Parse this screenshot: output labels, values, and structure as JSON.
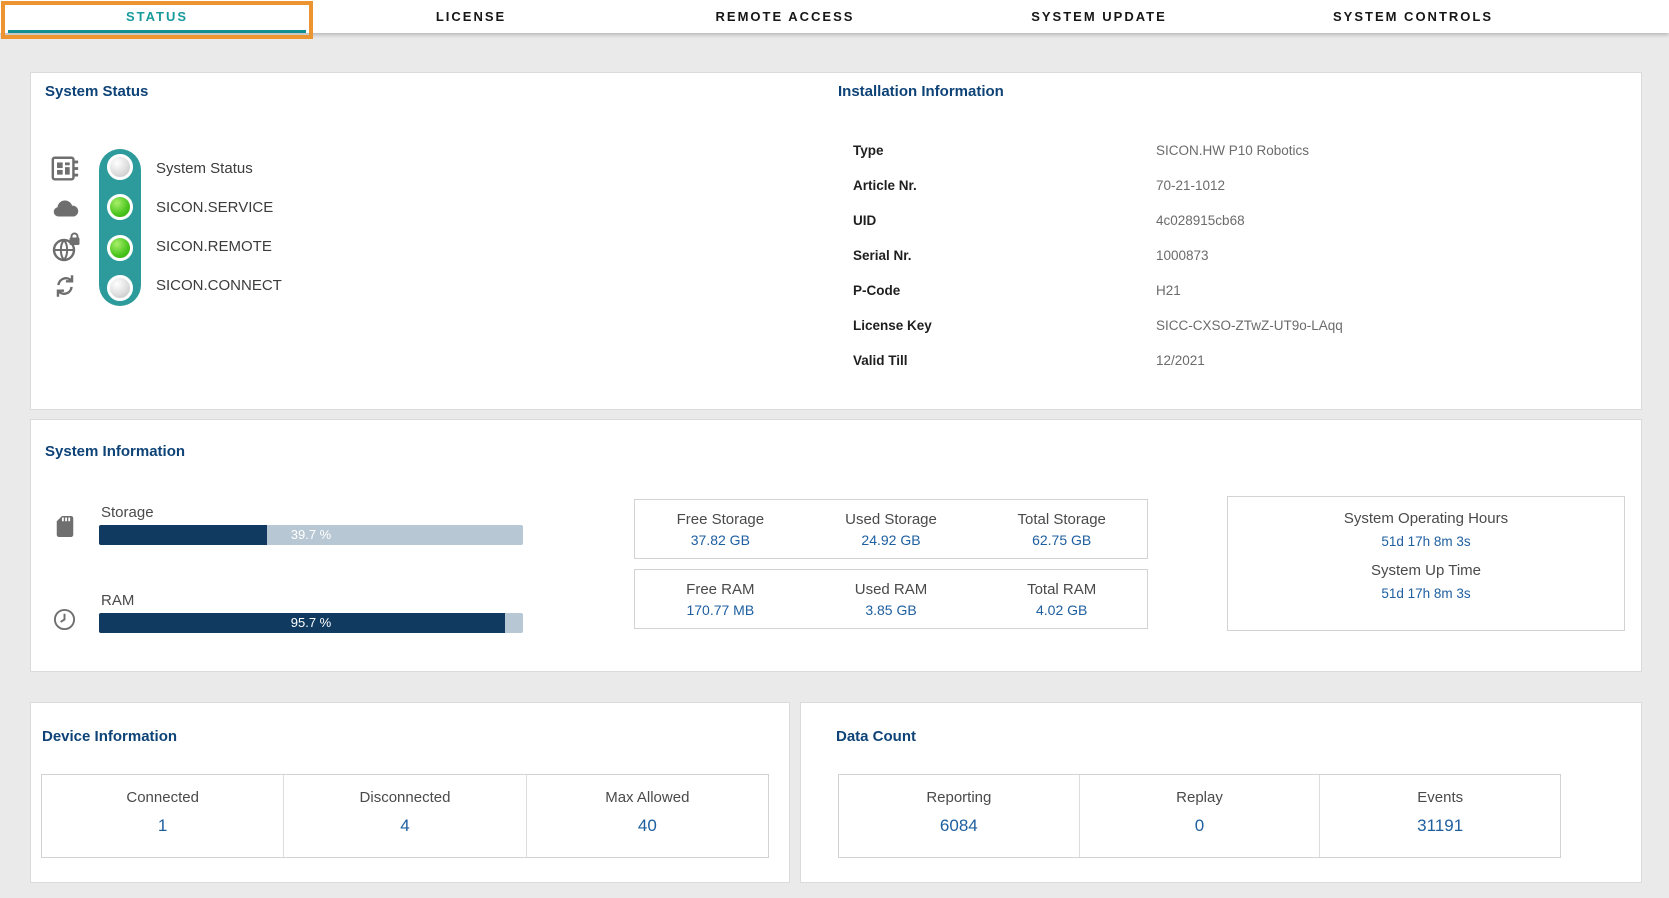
{
  "tabs": [
    {
      "label": "STATUS",
      "active": true,
      "highlighted": true
    },
    {
      "label": "LICENSE",
      "active": false
    },
    {
      "label": "REMOTE ACCESS",
      "active": false
    },
    {
      "label": "SYSTEM UPDATE",
      "active": false
    },
    {
      "label": "SYSTEM CONTROLS",
      "active": false
    }
  ],
  "system_status": {
    "title": "System Status",
    "indicators": [
      {
        "label": "System Status",
        "icon": "module-icon",
        "state": "off"
      },
      {
        "label": "SICON.SERVICE",
        "icon": "cloud-icon",
        "state": "on"
      },
      {
        "label": "SICON.REMOTE",
        "icon": "globe-lock-icon",
        "state": "on"
      },
      {
        "label": "SICON.CONNECT",
        "icon": "sync-icon",
        "state": "off"
      }
    ]
  },
  "installation_information": {
    "title": "Installation Information",
    "rows": [
      {
        "label": "Type",
        "value": "SICON.HW P10 Robotics"
      },
      {
        "label": "Article Nr.",
        "value": "70-21-1012"
      },
      {
        "label": "UID",
        "value": "4c028915cb68"
      },
      {
        "label": "Serial Nr.",
        "value": "1000873"
      },
      {
        "label": "P-Code",
        "value": "H21"
      },
      {
        "label": "License Key",
        "value": "SICC-CXSO-ZTwZ-UT9o-LAqq"
      },
      {
        "label": "Valid Till",
        "value": "12/2021"
      }
    ]
  },
  "system_information": {
    "title": "System Information",
    "storage_gauge": {
      "label": "Storage",
      "icon": "sd-card-icon",
      "percent": 39.7,
      "percent_label": "39.7 %"
    },
    "ram_gauge": {
      "label": "RAM",
      "icon": "clock-icon",
      "percent": 95.7,
      "percent_label": "95.7 %"
    },
    "storage_stats": [
      {
        "label": "Free Storage",
        "value": "37.82 GB"
      },
      {
        "label": "Used Storage",
        "value": "24.92 GB"
      },
      {
        "label": "Total Storage",
        "value": "62.75 GB"
      }
    ],
    "ram_stats": [
      {
        "label": "Free RAM",
        "value": "170.77 MB"
      },
      {
        "label": "Used RAM",
        "value": "3.85 GB"
      },
      {
        "label": "Total RAM",
        "value": "4.02 GB"
      }
    ],
    "time_stats": [
      {
        "label": "System Operating Hours",
        "value": "51d 17h 8m 3s"
      },
      {
        "label": "System Up Time",
        "value": "51d 17h 8m 3s"
      }
    ]
  },
  "device_information": {
    "title": "Device Information",
    "stats": [
      {
        "label": "Connected",
        "value": "1"
      },
      {
        "label": "Disconnected",
        "value": "4"
      },
      {
        "label": "Max Allowed",
        "value": "40"
      }
    ]
  },
  "data_count": {
    "title": "Data Count",
    "stats": [
      {
        "label": "Reporting",
        "value": "6084"
      },
      {
        "label": "Replay",
        "value": "0"
      },
      {
        "label": "Events",
        "value": "31191"
      }
    ]
  },
  "colors": {
    "accent_teal": "#169a9b",
    "highlight_orange": "#ec9530",
    "heading_blue": "#0e4377",
    "value_blue": "#1e5fa0",
    "bar_fill_navy": "#103a60",
    "bar_track": "#b8c7d4",
    "traffic_pill_teal": "#2d9b9b",
    "status_on_green": "#49c41d",
    "status_off_gray": "#dedede"
  }
}
